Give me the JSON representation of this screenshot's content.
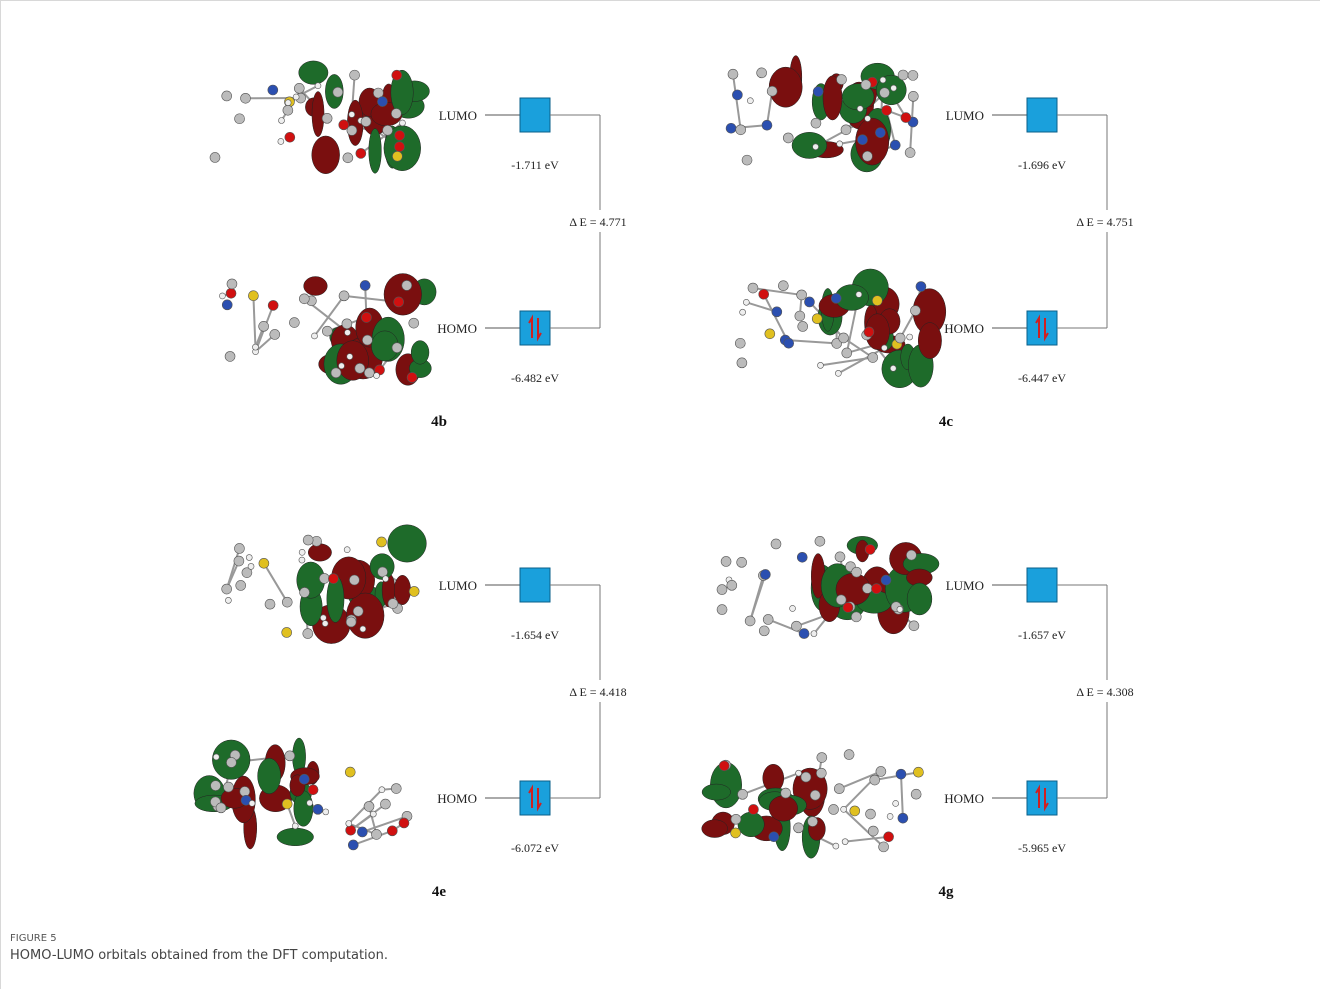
{
  "figure": {
    "panels": [
      {
        "label": "4b",
        "lumo_label": "LUMO",
        "lumo_energy": "-1.711 eV",
        "homo_label": "HOMO",
        "homo_energy": "-6.482 eV",
        "gap": "Δ E = 4.771"
      },
      {
        "label": "4c",
        "lumo_label": "LUMO",
        "lumo_energy": "-1.696 eV",
        "homo_label": "HOMO",
        "homo_energy": "-6.447 eV",
        "gap": "Δ E = 4.751"
      },
      {
        "label": "4e",
        "lumo_label": "LUMO",
        "lumo_energy": "-1.654 eV",
        "homo_label": "HOMO",
        "homo_energy": "-6.072 eV",
        "gap": "Δ E = 4.418"
      },
      {
        "label": "4g",
        "lumo_label": "LUMO",
        "lumo_energy": "-1.657 eV",
        "homo_label": "HOMO",
        "homo_energy": "-5.965 eV",
        "gap": "Δ E = 4.308"
      }
    ],
    "number": "FIGURE 5",
    "caption": "HOMO-LUMO orbitals obtained from the DFT computation."
  }
}
